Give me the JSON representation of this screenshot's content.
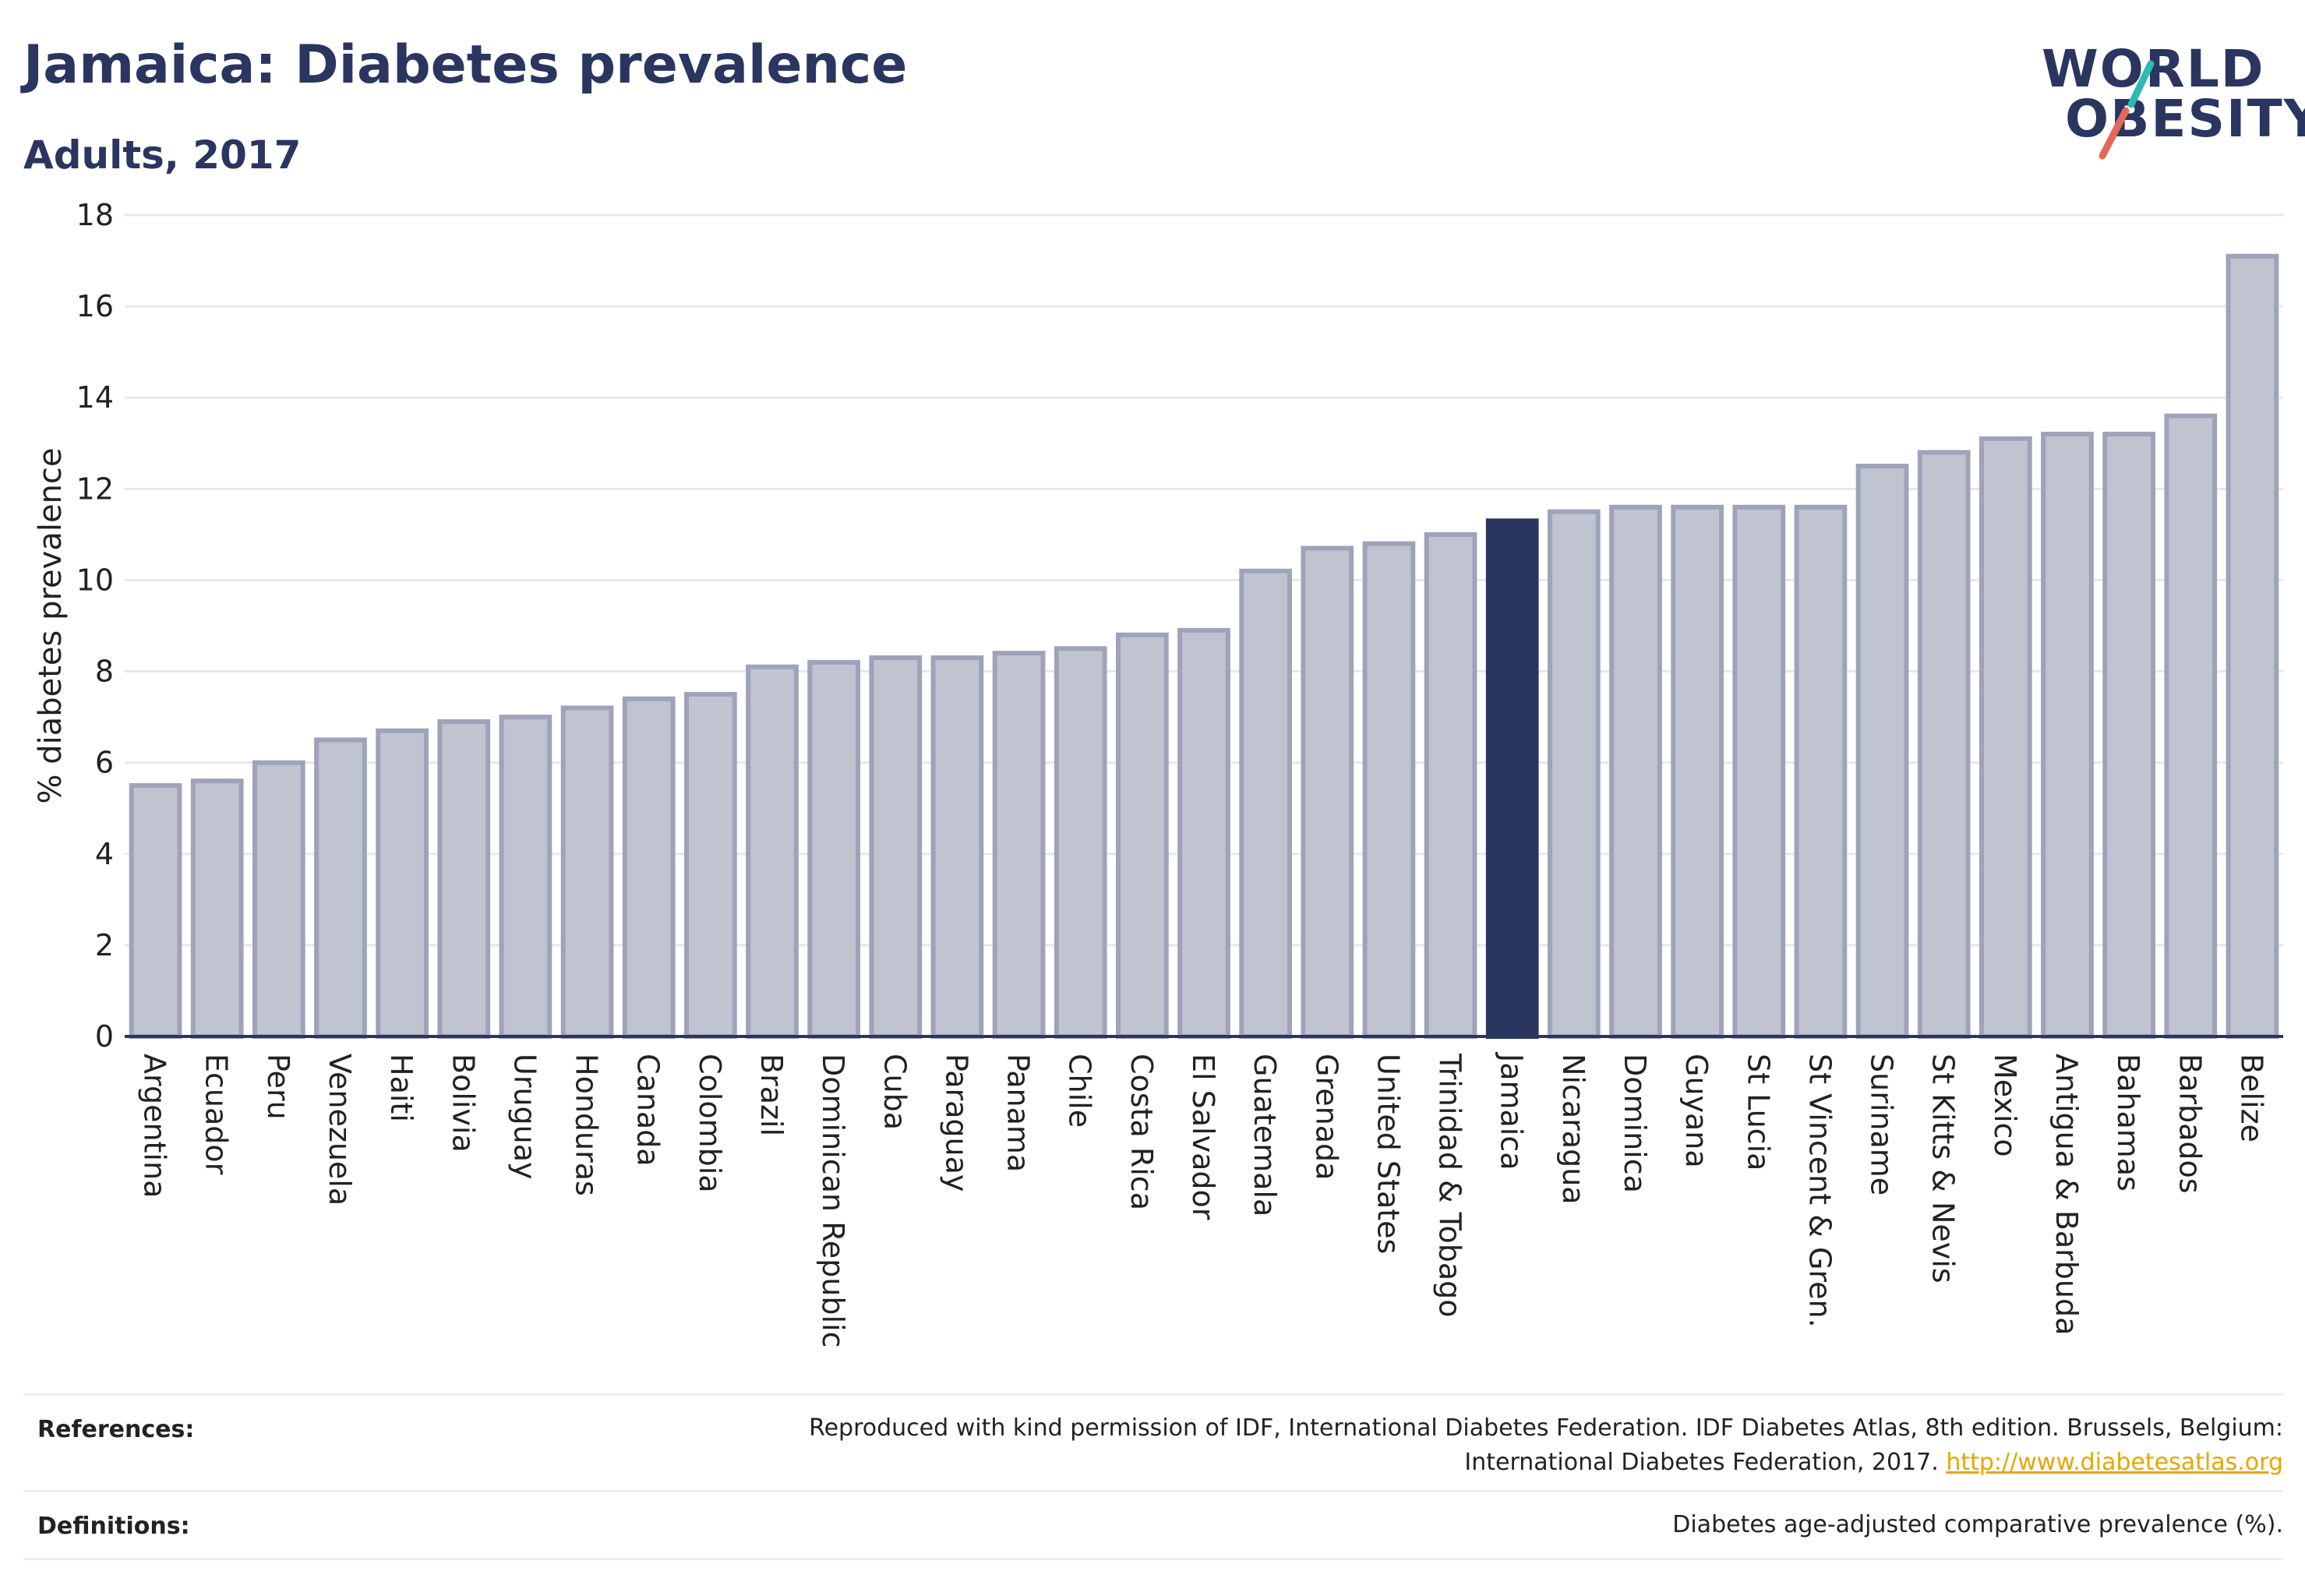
{
  "header": {
    "title": "Jamaica: Diabetes prevalence",
    "subtitle": "Adults, 2017"
  },
  "logo": {
    "line1": "WORLD",
    "line2": "OBESITY"
  },
  "chart_data": {
    "type": "bar",
    "ylabel": "% diabetes prevalence",
    "ylim": [
      0,
      18
    ],
    "yticks": [
      0,
      2,
      4,
      6,
      8,
      10,
      12,
      14,
      16,
      18
    ],
    "grid": true,
    "categories": [
      "Argentina",
      "Ecuador",
      "Peru",
      "Venezuela",
      "Haiti",
      "Bolivia",
      "Uruguay",
      "Honduras",
      "Canada",
      "Colombia",
      "Brazil",
      "Dominican Republic",
      "Cuba",
      "Paraguay",
      "Panama",
      "Chile",
      "Costa Rica",
      "El Salvador",
      "Guatemala",
      "Grenada",
      "United States",
      "Trinidad & Tobago",
      "Jamaica",
      "Nicaragua",
      "Dominica",
      "Guyana",
      "St Lucia",
      "St Vincent & Gren.",
      "Suriname",
      "St Kitts & Nevis",
      "Mexico",
      "Antigua & Barbuda",
      "Bahamas",
      "Barbados",
      "Belize"
    ],
    "values": [
      5.5,
      5.6,
      6.0,
      6.5,
      6.7,
      6.9,
      7.0,
      7.2,
      7.4,
      7.5,
      8.1,
      8.2,
      8.3,
      8.3,
      8.4,
      8.5,
      8.8,
      8.9,
      10.2,
      10.7,
      10.8,
      11.0,
      11.3,
      11.5,
      11.6,
      11.6,
      11.6,
      11.6,
      12.5,
      12.8,
      13.1,
      13.2,
      13.2,
      13.6,
      17.1
    ],
    "highlight": "Jamaica",
    "colors": {
      "bar": "#c0c3d0",
      "bar_border": "#9ea3b9",
      "highlight": "#2a3560",
      "grid": "#e6e8ee",
      "axis": "#2a3560"
    }
  },
  "footer": {
    "references_label": "References:",
    "references_line1": "Reproduced with kind permission of IDF, International Diabetes Federation. IDF Diabetes Atlas, 8th edition. Brussels, Belgium:",
    "references_line2": "International Diabetes Federation, 2017.",
    "references_link": "http://www.diabetesatlas.org",
    "definitions_label": "Definitions:",
    "definitions_text": "Diabetes age-adjusted comparative prevalence (%)."
  }
}
